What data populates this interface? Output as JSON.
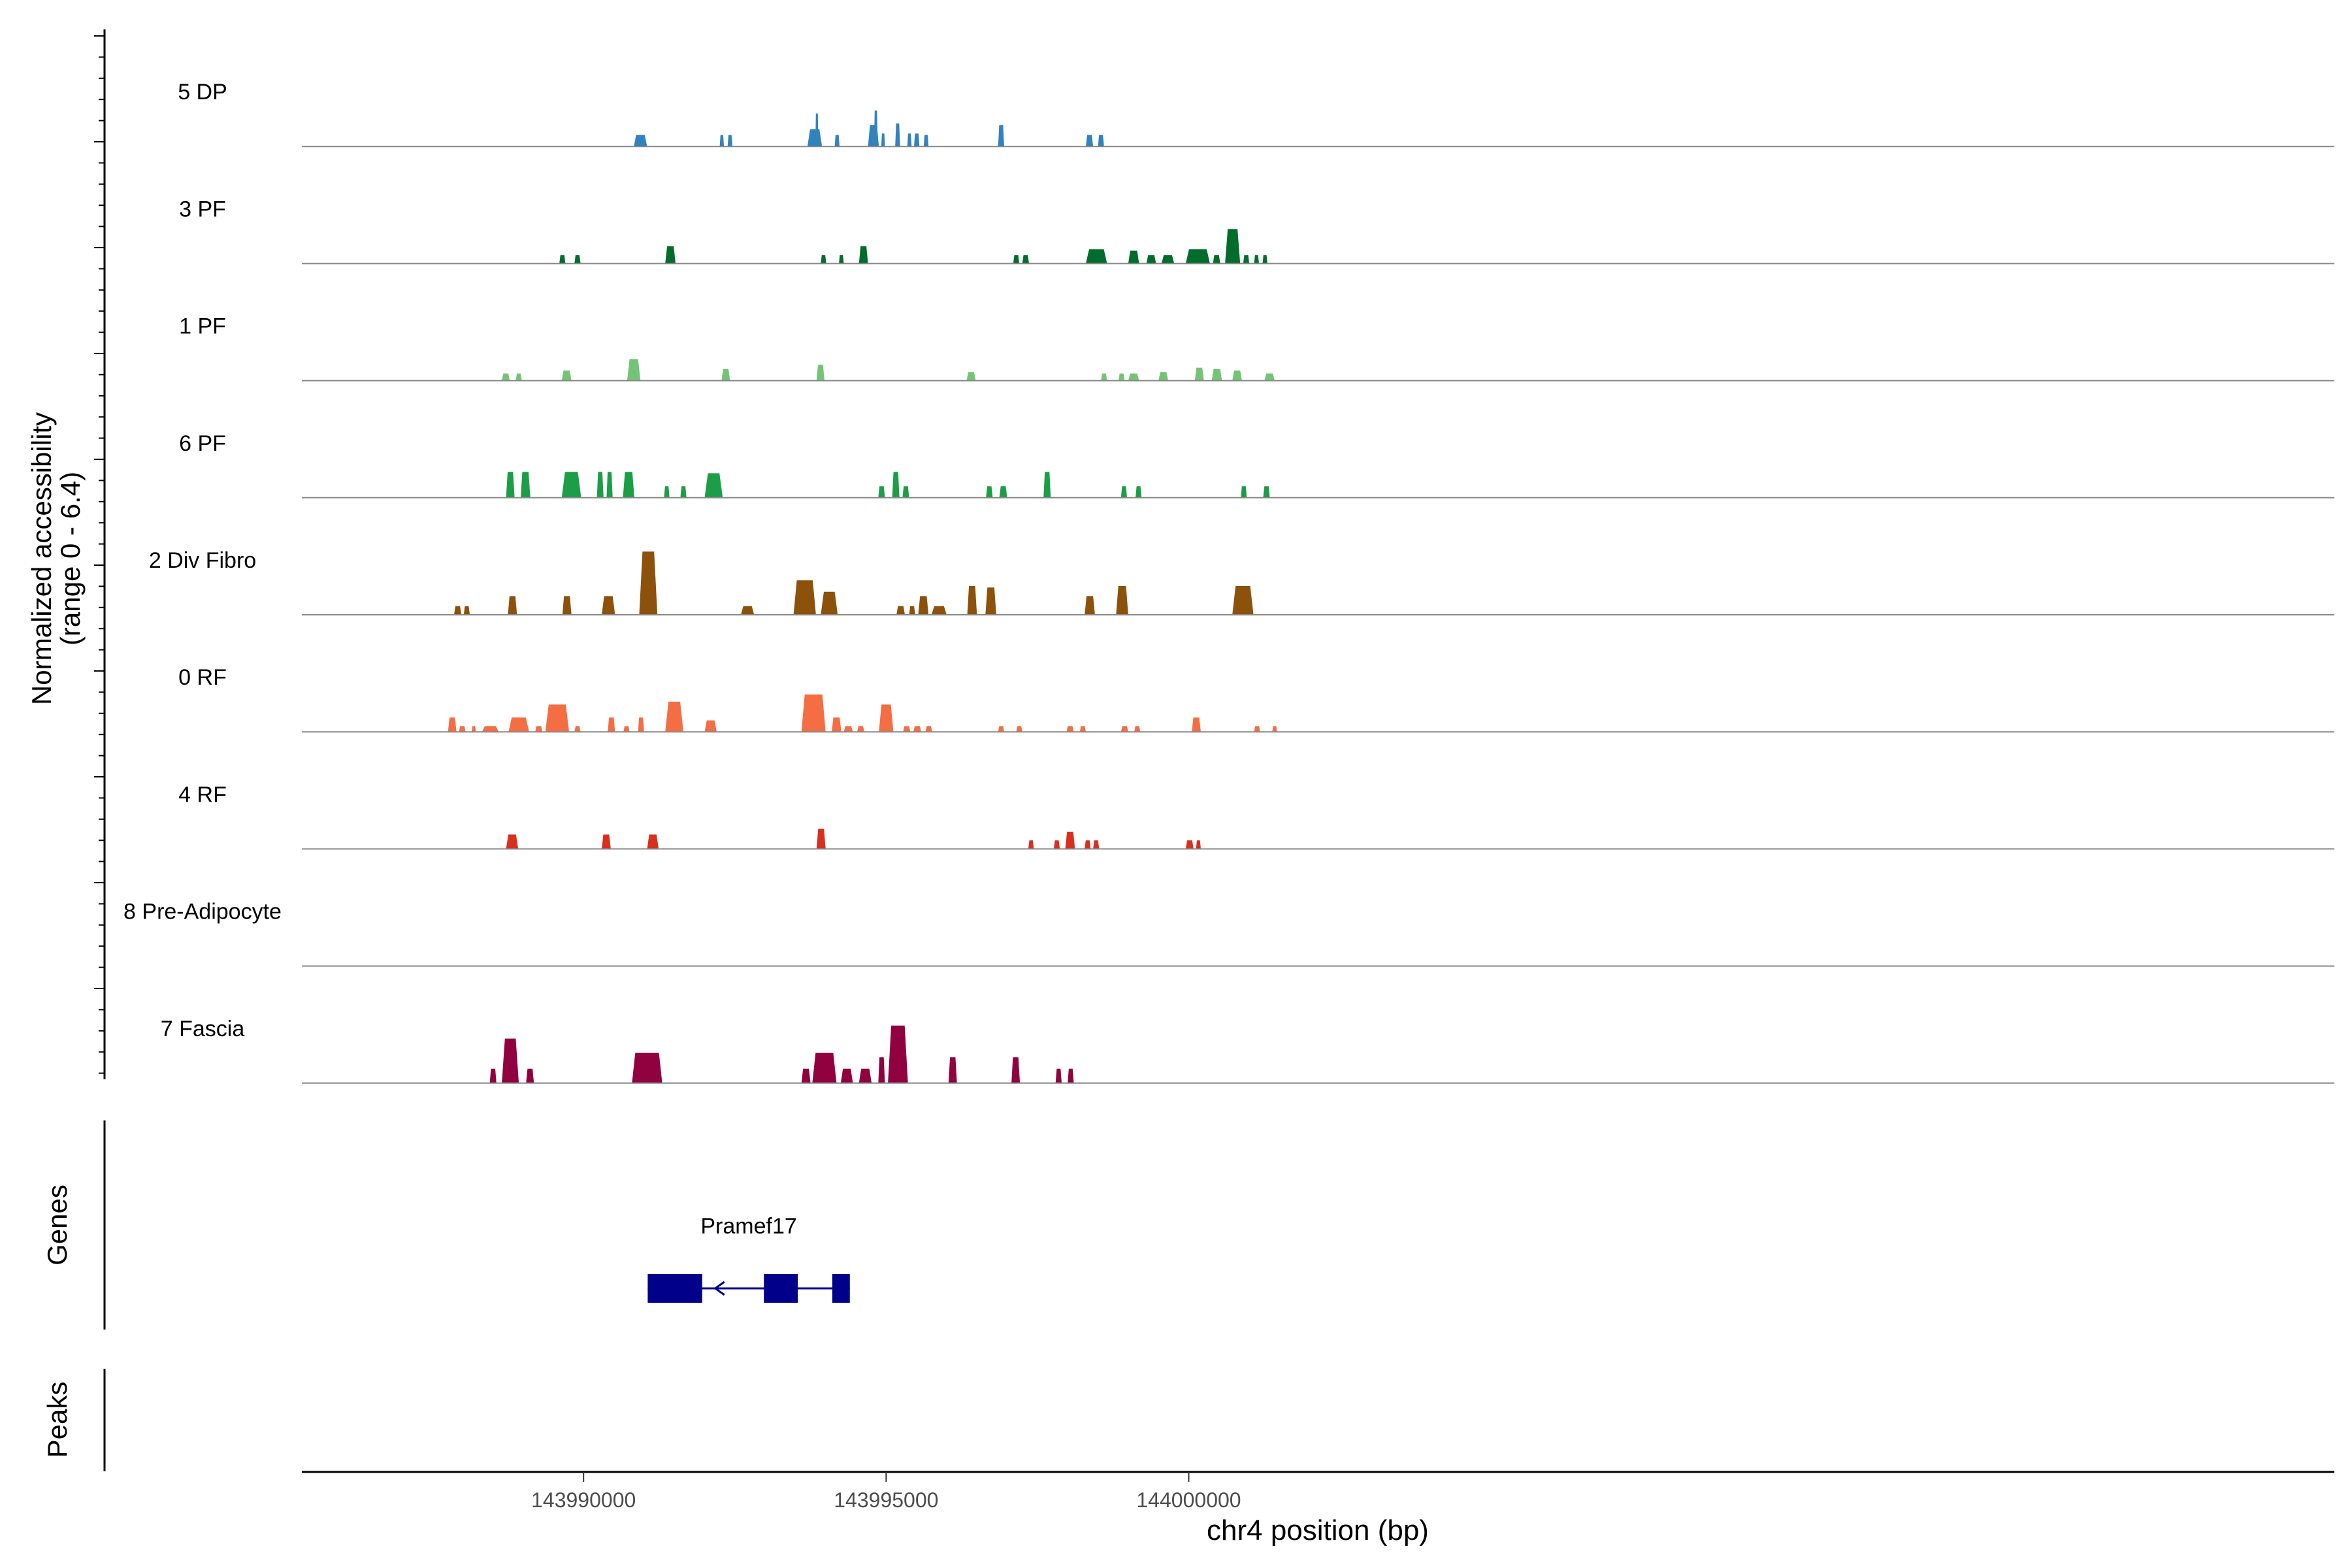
{
  "chart_data": {
    "type": "area",
    "title": "",
    "xlabel": "chr4 position (bp)",
    "ylabel": "Normalized accessibility",
    "ylabel_range": "(range 0 - 6.4)",
    "ylim": [
      0,
      6.4
    ],
    "xlim": [
      143985345,
      144018930
    ],
    "x_ticks": [
      143990000,
      143995000,
      144000000
    ],
    "x_tick_labels": [
      "143990000",
      "143995000",
      "144000000"
    ],
    "gene_panel_label": "Genes",
    "peaks_panel_label": "Peaks",
    "colors": [
      "#3182bd",
      "#006d2c",
      "#74c476",
      "#1b9e47",
      "#8c510a",
      "#f46d43",
      "#d7301f",
      "#888888",
      "#91003f"
    ],
    "series": [
      {
        "name": "5 DP",
        "peaks": [
          [
            143990830,
            143991050,
            0.8
          ],
          [
            143992250,
            143992320,
            0.8
          ],
          [
            143992380,
            143992460,
            0.8
          ],
          [
            143993700,
            143993940,
            1.2
          ],
          [
            143993830,
            143993880,
            2.3
          ],
          [
            143994150,
            143994230,
            0.8
          ],
          [
            143994700,
            143994880,
            1.5
          ],
          [
            143994800,
            143994860,
            2.5
          ],
          [
            143994920,
            143994980,
            0.9
          ],
          [
            143995150,
            143995230,
            1.6
          ],
          [
            143995350,
            143995420,
            0.9
          ],
          [
            143995460,
            143995550,
            0.9
          ],
          [
            143995620,
            143995700,
            0.8
          ],
          [
            143996850,
            143996950,
            1.5
          ],
          [
            143998300,
            143998420,
            0.8
          ],
          [
            143998500,
            143998600,
            0.8
          ]
        ]
      },
      {
        "name": "3 PF",
        "peaks": [
          [
            143989600,
            143989700,
            0.6
          ],
          [
            143989850,
            143989950,
            0.6
          ],
          [
            143991350,
            143991520,
            1.2
          ],
          [
            143993920,
            143994010,
            0.6
          ],
          [
            143994220,
            143994300,
            0.6
          ],
          [
            143994550,
            143994700,
            1.2
          ],
          [
            143997100,
            143997200,
            0.6
          ],
          [
            143997250,
            143997360,
            0.6
          ],
          [
            143998300,
            143998650,
            1.0
          ],
          [
            143999000,
            143999180,
            0.9
          ],
          [
            143999300,
            143999460,
            0.6
          ],
          [
            143999550,
            143999760,
            0.6
          ],
          [
            143999950,
            144000350,
            1.0
          ],
          [
            144000400,
            144000520,
            0.6
          ],
          [
            144000600,
            144000850,
            2.4
          ],
          [
            144000900,
            144001000,
            0.6
          ],
          [
            144001080,
            144001160,
            0.6
          ],
          [
            144001220,
            144001300,
            0.6
          ]
        ]
      },
      {
        "name": "1 PF",
        "peaks": [
          [
            143988650,
            143988780,
            0.5
          ],
          [
            143988880,
            143988980,
            0.5
          ],
          [
            143989640,
            143989800,
            0.7
          ],
          [
            143990720,
            143990940,
            1.5
          ],
          [
            143992280,
            143992420,
            0.8
          ],
          [
            143993850,
            143993980,
            1.1
          ],
          [
            143996330,
            143996480,
            0.6
          ],
          [
            143998550,
            143998650,
            0.5
          ],
          [
            143998840,
            143998940,
            0.5
          ],
          [
            143999000,
            143999180,
            0.5
          ],
          [
            143999500,
            143999660,
            0.6
          ],
          [
            144000100,
            144000250,
            0.9
          ],
          [
            144000380,
            144000550,
            0.8
          ],
          [
            144000720,
            144000880,
            0.7
          ],
          [
            144001250,
            144001420,
            0.5
          ]
        ]
      },
      {
        "name": "6 PF",
        "peaks": [
          [
            143988720,
            143988860,
            1.8
          ],
          [
            143988960,
            143989120,
            1.8
          ],
          [
            143989640,
            143989960,
            1.8
          ],
          [
            143990220,
            143990330,
            1.8
          ],
          [
            143990380,
            143990480,
            1.8
          ],
          [
            143990650,
            143990840,
            1.8
          ],
          [
            143991330,
            143991420,
            0.8
          ],
          [
            143991600,
            143991700,
            0.8
          ],
          [
            143992000,
            143992300,
            1.7
          ],
          [
            143994870,
            143994980,
            0.8
          ],
          [
            143995100,
            143995220,
            1.8
          ],
          [
            143995270,
            143995380,
            0.8
          ],
          [
            143996650,
            143996760,
            0.8
          ],
          [
            143996870,
            143997000,
            0.8
          ],
          [
            143997600,
            143997720,
            1.8
          ],
          [
            143998880,
            143998980,
            0.8
          ],
          [
            143999120,
            143999220,
            0.8
          ],
          [
            144000860,
            144000960,
            0.8
          ],
          [
            144001230,
            144001340,
            0.8
          ]
        ]
      },
      {
        "name": "2 Div Fibro",
        "peaks": [
          [
            143987860,
            143987980,
            0.6
          ],
          [
            143988020,
            143988120,
            0.6
          ],
          [
            143988750,
            143988900,
            1.3
          ],
          [
            143989650,
            143989800,
            1.3
          ],
          [
            143990300,
            143990520,
            1.3
          ],
          [
            143990920,
            143991220,
            4.4
          ],
          [
            143992600,
            143992820,
            0.6
          ],
          [
            143993470,
            143993840,
            2.4
          ],
          [
            143993920,
            143994200,
            1.6
          ],
          [
            143995170,
            143995310,
            0.6
          ],
          [
            143995380,
            143995480,
            0.6
          ],
          [
            143995530,
            143995700,
            1.3
          ],
          [
            143995750,
            143996000,
            0.6
          ],
          [
            143996340,
            143996500,
            2.0
          ],
          [
            143996640,
            143996820,
            1.9
          ],
          [
            143998280,
            143998450,
            1.3
          ],
          [
            143998800,
            143999000,
            2.0
          ],
          [
            144000720,
            144001070,
            2.0
          ]
        ]
      },
      {
        "name": "0 RF",
        "peaks": [
          [
            143987760,
            143987900,
            1.0
          ],
          [
            143987940,
            143988050,
            0.4
          ],
          [
            143988150,
            143988220,
            0.4
          ],
          [
            143988320,
            143988600,
            0.4
          ],
          [
            143988760,
            143989100,
            1.0
          ],
          [
            143989200,
            143989320,
            0.4
          ],
          [
            143989370,
            143989760,
            1.9
          ],
          [
            143989850,
            143989950,
            0.4
          ],
          [
            143990400,
            143990520,
            1.0
          ],
          [
            143990660,
            143990760,
            0.4
          ],
          [
            143990900,
            143991000,
            1.0
          ],
          [
            143991350,
            143991650,
            2.1
          ],
          [
            143992000,
            143992200,
            0.8
          ],
          [
            143993600,
            143994000,
            2.6
          ],
          [
            143994100,
            143994260,
            1.0
          ],
          [
            143994300,
            143994450,
            0.4
          ],
          [
            143994520,
            143994640,
            0.4
          ],
          [
            143994880,
            143995120,
            1.9
          ],
          [
            143995280,
            143995400,
            0.4
          ],
          [
            143995450,
            143995580,
            0.4
          ],
          [
            143995650,
            143995760,
            0.4
          ],
          [
            143996850,
            143996950,
            0.4
          ],
          [
            143997150,
            143997250,
            0.4
          ],
          [
            143997980,
            143998100,
            0.4
          ],
          [
            143998200,
            143998300,
            0.4
          ],
          [
            143998880,
            143999000,
            0.4
          ],
          [
            143999100,
            143999200,
            0.4
          ],
          [
            144000050,
            144000200,
            1.0
          ],
          [
            144001080,
            144001180,
            0.4
          ],
          [
            144001380,
            144001460,
            0.4
          ]
        ]
      },
      {
        "name": "4 RF",
        "peaks": [
          [
            143988720,
            143988920,
            1.0
          ],
          [
            143990300,
            143990450,
            1.0
          ],
          [
            143991050,
            143991240,
            1.0
          ],
          [
            143993850,
            143994000,
            1.4
          ],
          [
            143997350,
            143997440,
            0.6
          ],
          [
            143997770,
            143997870,
            0.6
          ],
          [
            143997960,
            143998120,
            1.2
          ],
          [
            143998280,
            143998380,
            0.6
          ],
          [
            143998420,
            143998520,
            0.6
          ],
          [
            143999950,
            144000080,
            0.6
          ],
          [
            144000120,
            144000200,
            0.6
          ]
        ]
      },
      {
        "name": "8 Pre-Adipocyte",
        "peaks": []
      },
      {
        "name": "7 Fascia",
        "peaks": [
          [
            143988450,
            143988560,
            1.0
          ],
          [
            143988650,
            143988930,
            3.1
          ],
          [
            143989050,
            143989180,
            1.0
          ],
          [
            143990800,
            143991300,
            2.1
          ],
          [
            143993600,
            143993750,
            1.0
          ],
          [
            143993780,
            143994180,
            2.1
          ],
          [
            143994250,
            143994450,
            1.0
          ],
          [
            143994550,
            143994760,
            1.0
          ],
          [
            143994870,
            143994980,
            1.8
          ],
          [
            143995030,
            143995360,
            4.0
          ],
          [
            143996030,
            143996170,
            1.8
          ],
          [
            143997070,
            143997210,
            1.8
          ],
          [
            143997800,
            143997900,
            1.0
          ],
          [
            143998000,
            143998100,
            1.0
          ]
        ]
      }
    ],
    "genes": [
      {
        "name": "Pramef17",
        "strand": "-",
        "exons": [
          [
            143991060,
            143991960
          ],
          [
            143992980,
            143993540
          ],
          [
            143994110,
            143994400
          ]
        ],
        "start": 143991060,
        "end": 143994400
      }
    ]
  }
}
